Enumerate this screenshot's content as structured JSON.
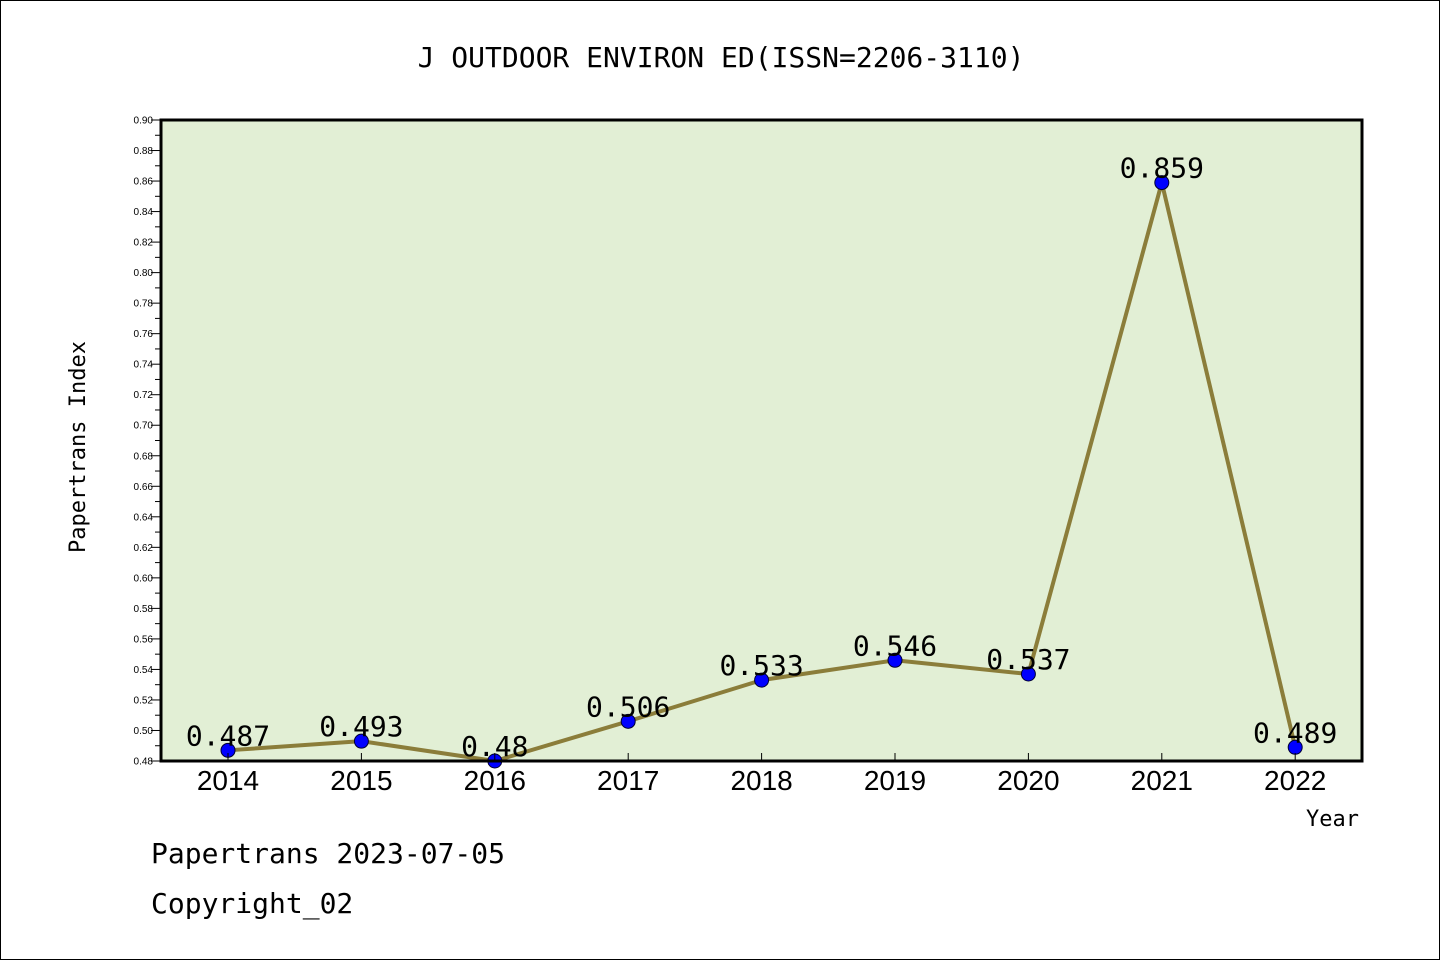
{
  "chart_data": {
    "type": "line",
    "title": "J OUTDOOR ENVIRON ED(ISSN=2206-3110)",
    "xlabel": "Year",
    "ylabel": "Papertrans Index",
    "categories": [
      "2014",
      "2015",
      "2016",
      "2017",
      "2018",
      "2019",
      "2020",
      "2021",
      "2022"
    ],
    "values": [
      0.487,
      0.493,
      0.48,
      0.506,
      0.533,
      0.546,
      0.537,
      0.859,
      0.489
    ],
    "data_labels": [
      "0.487",
      "0.493",
      "0.48",
      "0.506",
      "0.533",
      "0.546",
      "0.537",
      "0.859",
      "0.489"
    ],
    "ylim": [
      0.48,
      0.9
    ],
    "yticks": [
      "0.48",
      "0.50",
      "0.52",
      "0.54",
      "0.56",
      "0.58",
      "0.60",
      "0.62",
      "0.64",
      "0.66",
      "0.68",
      "0.70",
      "0.72",
      "0.74",
      "0.76",
      "0.78",
      "0.80",
      "0.82",
      "0.84",
      "0.86",
      "0.88",
      "0.90"
    ],
    "grid": false,
    "colors": {
      "plot_background": "#e2efd5",
      "line": "#8b7d3a",
      "marker": "#0000ff"
    }
  },
  "footer": {
    "line1": "Papertrans 2023-07-05",
    "line2": "Copyright_02"
  }
}
